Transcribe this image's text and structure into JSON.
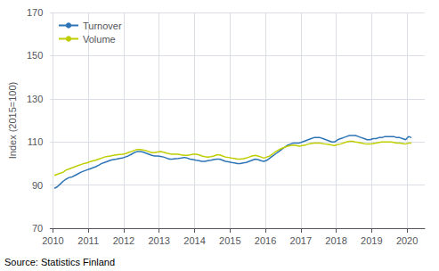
{
  "chart_data": {
    "type": "line",
    "y_label": "Index (2015=100)",
    "annotations": [
      "Source: Statistics Finland"
    ],
    "x": [
      2010.0416666666667,
      2010.125,
      2010.2083333333333,
      2010.2916666666667,
      2010.375,
      2010.4583333333333,
      2010.5416666666667,
      2010.625,
      2010.7083333333333,
      2010.7916666666667,
      2010.875,
      2010.9583333333333,
      2011.0416666666667,
      2011.125,
      2011.2083333333333,
      2011.2916666666667,
      2011.375,
      2011.4583333333333,
      2011.5416666666667,
      2011.625,
      2011.7083333333333,
      2011.7916666666667,
      2011.875,
      2011.9583333333333,
      2012.0416666666667,
      2012.125,
      2012.2083333333333,
      2012.2916666666667,
      2012.375,
      2012.4583333333333,
      2012.5416666666667,
      2012.625,
      2012.7083333333333,
      2012.7916666666667,
      2012.875,
      2012.9583333333333,
      2013.0416666666667,
      2013.125,
      2013.2083333333333,
      2013.2916666666667,
      2013.375,
      2013.4583333333333,
      2013.5416666666667,
      2013.625,
      2013.7083333333333,
      2013.7916666666667,
      2013.875,
      2013.9583333333333,
      2014.0416666666667,
      2014.125,
      2014.2083333333333,
      2014.2916666666667,
      2014.375,
      2014.4583333333333,
      2014.5416666666667,
      2014.625,
      2014.7083333333333,
      2014.7916666666667,
      2014.875,
      2014.9583333333333,
      2015.0416666666667,
      2015.125,
      2015.2083333333333,
      2015.2916666666667,
      2015.375,
      2015.4583333333333,
      2015.5416666666667,
      2015.625,
      2015.7083333333333,
      2015.7916666666667,
      2015.875,
      2015.9583333333333,
      2016.0416666666667,
      2016.125,
      2016.2083333333333,
      2016.2916666666667,
      2016.375,
      2016.4583333333333,
      2016.5416666666667,
      2016.625,
      2016.7083333333333,
      2016.7916666666667,
      2016.875,
      2016.9583333333333,
      2017.0416666666667,
      2017.125,
      2017.2083333333333,
      2017.2916666666667,
      2017.375,
      2017.4583333333333,
      2017.5416666666667,
      2017.625,
      2017.7083333333333,
      2017.7916666666667,
      2017.875,
      2017.9583333333333,
      2018.0416666666667,
      2018.125,
      2018.2083333333333,
      2018.2916666666667,
      2018.375,
      2018.4583333333333,
      2018.5416666666667,
      2018.625,
      2018.7083333333333,
      2018.7916666666667,
      2018.875,
      2018.9583333333333,
      2019.0416666666667,
      2019.125,
      2019.2083333333333,
      2019.2916666666667,
      2019.375,
      2019.4583333333333,
      2019.5416666666667,
      2019.625,
      2019.7083333333333,
      2019.7916666666667,
      2019.875,
      2019.9583333333333,
      2020.0416666666667,
      2020.125
    ],
    "series": [
      {
        "name": "Turnover",
        "color": "#2E75B6",
        "values": [
          88.5,
          89.2,
          90.5,
          91.8,
          92.8,
          93.5,
          93.8,
          94.5,
          95.2,
          96.0,
          96.5,
          97.0,
          97.5,
          98.0,
          98.5,
          99.2,
          100.0,
          100.5,
          101.0,
          101.5,
          101.8,
          102.0,
          102.3,
          102.5,
          103.0,
          103.5,
          104.2,
          105.0,
          105.5,
          105.5,
          105.3,
          104.8,
          104.3,
          103.8,
          103.5,
          103.5,
          103.3,
          103.0,
          102.5,
          102.0,
          102.0,
          102.2,
          102.3,
          102.5,
          102.8,
          102.5,
          102.0,
          101.8,
          101.5,
          101.3,
          101.0,
          101.0,
          101.3,
          101.5,
          101.8,
          102.0,
          102.0,
          101.5,
          101.0,
          100.8,
          100.5,
          100.3,
          100.0,
          100.0,
          100.3,
          100.5,
          101.0,
          101.5,
          102.0,
          101.8,
          101.3,
          101.0,
          101.5,
          102.5,
          103.5,
          104.5,
          105.5,
          106.5,
          107.5,
          108.5,
          109.0,
          109.5,
          109.5,
          109.5,
          110.0,
          110.5,
          111.0,
          111.5,
          112.0,
          112.0,
          112.0,
          111.5,
          111.0,
          110.5,
          110.0,
          110.0,
          111.0,
          111.5,
          112.0,
          112.5,
          113.0,
          113.0,
          113.0,
          112.5,
          112.0,
          111.5,
          111.0,
          111.0,
          111.5,
          111.5,
          112.0,
          112.0,
          112.5,
          112.5,
          112.5,
          112.5,
          112.0,
          112.0,
          111.5,
          111.0,
          112.5,
          112.0
        ]
      },
      {
        "name": "Volume",
        "color": "#BFCE00",
        "values": [
          94.5,
          95.0,
          95.5,
          96.0,
          97.0,
          97.5,
          98.0,
          98.5,
          99.0,
          99.5,
          100.0,
          100.3,
          100.8,
          101.2,
          101.5,
          102.0,
          102.5,
          103.0,
          103.3,
          103.5,
          103.8,
          104.0,
          104.2,
          104.3,
          104.5,
          105.0,
          105.5,
          106.0,
          106.5,
          106.5,
          106.3,
          106.0,
          105.5,
          105.0,
          105.0,
          105.3,
          105.5,
          105.2,
          104.8,
          104.5,
          104.3,
          104.3,
          104.3,
          104.0,
          103.8,
          103.8,
          104.0,
          104.3,
          104.3,
          104.0,
          103.5,
          103.2,
          103.0,
          103.2,
          103.5,
          104.0,
          104.0,
          103.5,
          103.0,
          102.8,
          102.5,
          102.3,
          102.0,
          102.0,
          102.2,
          102.5,
          103.0,
          103.5,
          103.8,
          103.5,
          103.0,
          102.5,
          103.0,
          103.5,
          104.5,
          105.5,
          106.3,
          107.0,
          107.5,
          108.0,
          108.3,
          108.5,
          108.3,
          108.0,
          108.3,
          108.5,
          109.0,
          109.3,
          109.5,
          109.5,
          109.5,
          109.2,
          109.0,
          108.8,
          108.5,
          108.3,
          108.8,
          109.0,
          109.5,
          110.0,
          110.3,
          110.3,
          110.0,
          109.8,
          109.5,
          109.2,
          109.0,
          109.0,
          109.3,
          109.5,
          109.8,
          110.0,
          110.0,
          110.0,
          110.0,
          109.8,
          109.5,
          109.5,
          109.3,
          109.0,
          109.5,
          109.5
        ]
      }
    ],
    "xlim": [
      2009.92,
      2020.5
    ],
    "xticks": [
      2010,
      2011,
      2012,
      2013,
      2014,
      2015,
      2016,
      2017,
      2018,
      2019,
      2020
    ],
    "ylim": [
      70,
      170
    ],
    "yticks": [
      70,
      90,
      110,
      130,
      150,
      170
    ],
    "grid": true,
    "legend": "upper left"
  }
}
